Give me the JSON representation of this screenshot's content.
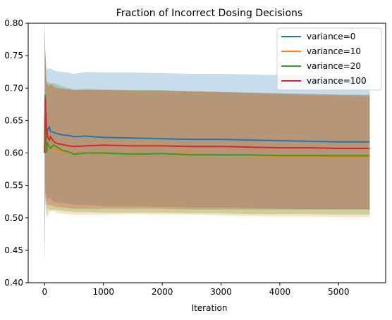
{
  "chart_data": {
    "type": "line",
    "title": "Fraction of Incorrect Dosing Decisions",
    "xlabel": "Iteration",
    "ylabel": "",
    "xlim": [
      -280,
      5800
    ],
    "ylim": [
      0.4,
      0.8
    ],
    "xticks": [
      0,
      1000,
      2000,
      3000,
      4000,
      5000
    ],
    "yticks": [
      0.4,
      0.45,
      0.5,
      0.55,
      0.6,
      0.65,
      0.7,
      0.75,
      0.8
    ],
    "grid": false,
    "legend_position": "top-right",
    "series": [
      {
        "name": "variance=0",
        "color": "#1f77b4",
        "x": [
          0,
          10,
          30,
          50,
          80,
          100,
          150,
          200,
          300,
          400,
          500,
          700,
          1000,
          1500,
          2000,
          2500,
          3000,
          3500,
          4000,
          4500,
          5000,
          5530
        ],
        "y": [
          0.6,
          0.66,
          0.63,
          0.635,
          0.64,
          0.633,
          0.632,
          0.63,
          0.628,
          0.627,
          0.625,
          0.626,
          0.624,
          0.623,
          0.622,
          0.621,
          0.621,
          0.62,
          0.619,
          0.618,
          0.617,
          0.617
        ],
        "band_upper": [
          0.8,
          0.76,
          0.73,
          0.73,
          0.73,
          0.73,
          0.728,
          0.726,
          0.725,
          0.724,
          0.722,
          0.725,
          0.724,
          0.724,
          0.723,
          0.722,
          0.722,
          0.721,
          0.72,
          0.72,
          0.719,
          0.719
        ],
        "band_lower": [
          0.43,
          0.55,
          0.53,
          0.53,
          0.53,
          0.53,
          0.525,
          0.524,
          0.523,
          0.522,
          0.52,
          0.52,
          0.518,
          0.518,
          0.517,
          0.516,
          0.516,
          0.515,
          0.514,
          0.513,
          0.513,
          0.513
        ]
      },
      {
        "name": "variance=10",
        "color": "#ff7f0e",
        "x": [
          0,
          10,
          30,
          50,
          80,
          100,
          150,
          200,
          300,
          400,
          500,
          700,
          1000,
          1500,
          2000,
          2500,
          3000,
          3500,
          4000,
          4500,
          5000,
          5530
        ],
        "y": [
          0.6,
          0.685,
          0.615,
          0.605,
          0.61,
          0.612,
          0.608,
          0.605,
          0.603,
          0.601,
          0.6,
          0.6,
          0.599,
          0.6,
          0.599,
          0.598,
          0.597,
          0.596,
          0.595,
          0.595,
          0.594,
          0.594
        ],
        "band_upper": [
          0.8,
          0.75,
          0.71,
          0.705,
          0.707,
          0.708,
          0.705,
          0.702,
          0.7,
          0.698,
          0.697,
          0.698,
          0.697,
          0.697,
          0.696,
          0.695,
          0.694,
          0.692,
          0.69,
          0.689,
          0.688,
          0.687
        ],
        "band_lower": [
          0.43,
          0.53,
          0.51,
          0.5,
          0.51,
          0.512,
          0.51,
          0.508,
          0.507,
          0.506,
          0.505,
          0.505,
          0.505,
          0.506,
          0.505,
          0.505,
          0.504,
          0.503,
          0.502,
          0.502,
          0.501,
          0.501
        ]
      },
      {
        "name": "variance=20",
        "color": "#2ca02c",
        "x": [
          0,
          10,
          30,
          50,
          80,
          100,
          150,
          200,
          300,
          400,
          500,
          700,
          1000,
          1500,
          2000,
          2500,
          3000,
          3500,
          4000,
          4500,
          5000,
          5530
        ],
        "y": [
          0.6,
          0.69,
          0.6,
          0.615,
          0.61,
          0.607,
          0.612,
          0.61,
          0.604,
          0.602,
          0.598,
          0.6,
          0.6,
          0.598,
          0.599,
          0.597,
          0.597,
          0.597,
          0.596,
          0.596,
          0.596,
          0.596
        ],
        "band_upper": [
          0.8,
          0.76,
          0.71,
          0.71,
          0.708,
          0.706,
          0.708,
          0.706,
          0.703,
          0.7,
          0.698,
          0.699,
          0.698,
          0.697,
          0.697,
          0.695,
          0.694,
          0.693,
          0.692,
          0.691,
          0.69,
          0.69
        ],
        "band_lower": [
          0.43,
          0.53,
          0.5,
          0.515,
          0.512,
          0.51,
          0.513,
          0.512,
          0.511,
          0.51,
          0.509,
          0.509,
          0.508,
          0.508,
          0.508,
          0.507,
          0.507,
          0.506,
          0.506,
          0.506,
          0.505,
          0.505
        ]
      },
      {
        "name": "variance=100",
        "color": "#d62728",
        "x": [
          0,
          10,
          30,
          50,
          80,
          100,
          150,
          200,
          300,
          400,
          500,
          700,
          1000,
          1500,
          2000,
          2500,
          3000,
          3500,
          4000,
          4500,
          5000,
          5530
        ],
        "y": [
          0.6,
          0.685,
          0.64,
          0.625,
          0.62,
          0.625,
          0.618,
          0.615,
          0.613,
          0.611,
          0.61,
          0.611,
          0.612,
          0.611,
          0.611,
          0.61,
          0.61,
          0.609,
          0.608,
          0.608,
          0.607,
          0.607
        ],
        "band_upper": [
          0.8,
          0.75,
          0.71,
          0.705,
          0.703,
          0.706,
          0.702,
          0.7,
          0.699,
          0.698,
          0.697,
          0.697,
          0.697,
          0.696,
          0.696,
          0.695,
          0.694,
          0.693,
          0.692,
          0.691,
          0.69,
          0.689
        ],
        "band_lower": [
          0.43,
          0.54,
          0.52,
          0.52,
          0.52,
          0.52,
          0.518,
          0.517,
          0.516,
          0.515,
          0.514,
          0.514,
          0.514,
          0.514,
          0.514,
          0.513,
          0.513,
          0.513,
          0.513,
          0.513,
          0.513,
          0.513
        ]
      }
    ]
  }
}
